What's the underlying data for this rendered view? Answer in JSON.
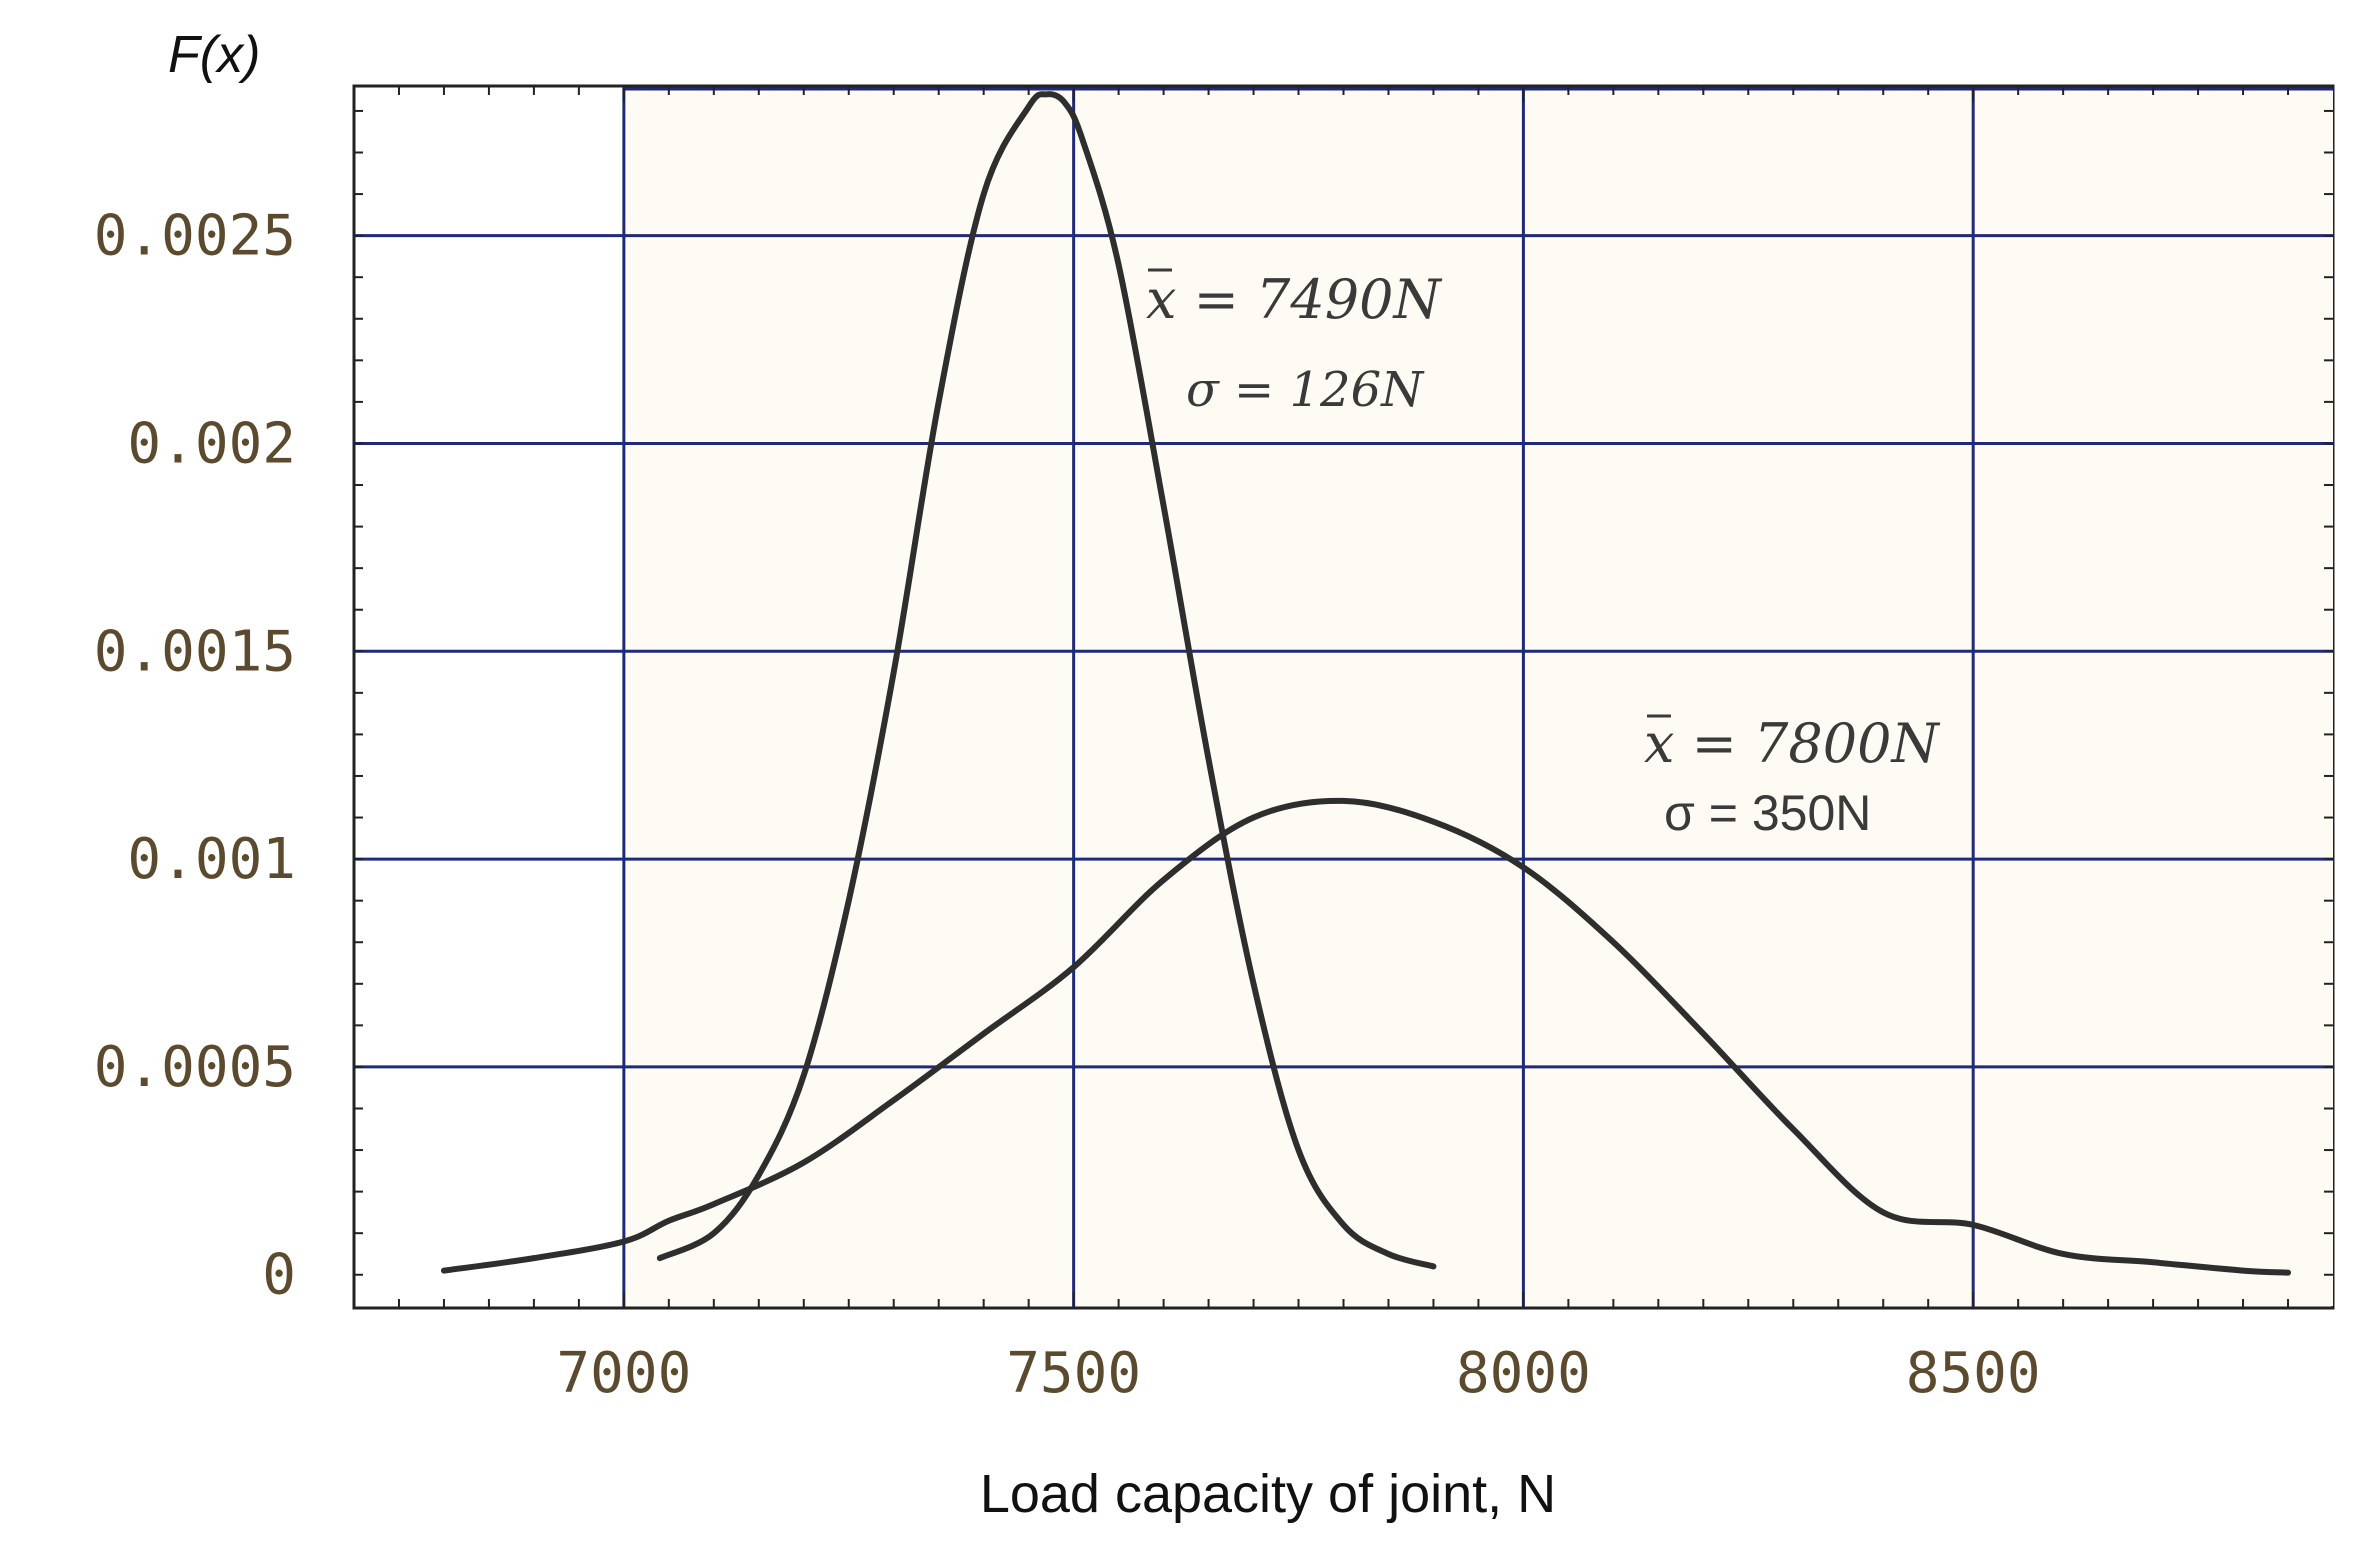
{
  "chart_data": {
    "type": "line",
    "title": "",
    "xlabel": "Load capacity of joint, N",
    "ylabel": "F(x)",
    "xlim": [
      6700,
      8900
    ],
    "ylim": [
      -8e-05,
      0.00286
    ],
    "shaded_x_range": [
      7000,
      8900
    ],
    "x_ticks": [
      7000,
      7500,
      8000,
      8500
    ],
    "x_tick_labels": [
      "7000",
      "7500",
      "8000",
      "8500"
    ],
    "y_ticks": [
      0,
      0.0005,
      0.001,
      0.0015,
      0.002,
      0.0025
    ],
    "y_tick_labels": [
      "0",
      "0.0005",
      "0.001",
      "0.0015",
      "0.002",
      "0.0025"
    ],
    "grid": true,
    "series": [
      {
        "x": [
          7040,
          7100,
          7150,
          7200,
          7250,
          7300,
          7350,
          7400,
          7450,
          7470,
          7490,
          7510,
          7550,
          7600,
          7650,
          7700,
          7750,
          7800,
          7850,
          7900
        ],
        "y": [
          4e-05,
          0.0001,
          0.00024,
          0.00048,
          0.0009,
          0.00145,
          0.0021,
          0.0026,
          0.00281,
          0.00284,
          0.00282,
          0.00273,
          0.00243,
          0.00185,
          0.00124,
          0.0007,
          0.0003,
          0.00012,
          5e-05,
          2e-05
        ]
      },
      {
        "x": [
          6800,
          6900,
          7000,
          7050,
          7100,
          7200,
          7300,
          7400,
          7500,
          7600,
          7700,
          7800,
          7900,
          8000,
          8100,
          8200,
          8300,
          8400,
          8500,
          8600,
          8700,
          8800,
          8850
        ],
        "y": [
          1e-05,
          4e-05,
          8e-05,
          0.00013,
          0.00017,
          0.00027,
          0.00042,
          0.00058,
          0.00074,
          0.00095,
          0.0011,
          0.00114,
          0.00109,
          0.00098,
          0.0008,
          0.00058,
          0.00035,
          0.00015,
          0.00012,
          5e-05,
          3e-05,
          1e-05,
          5e-06
        ]
      }
    ],
    "annotations": [
      {
        "mean_label": "x = 7490N",
        "sigma_label": "σ = 126N"
      },
      {
        "mean_label": "x = 7800N",
        "sigma_label": "σ = 350N"
      }
    ],
    "colors": {
      "plot_background": "#fdfbf3",
      "grid": "#1f2a7a",
      "curve": "#2e2e2e",
      "tick_label": "#5c4a2e"
    }
  }
}
